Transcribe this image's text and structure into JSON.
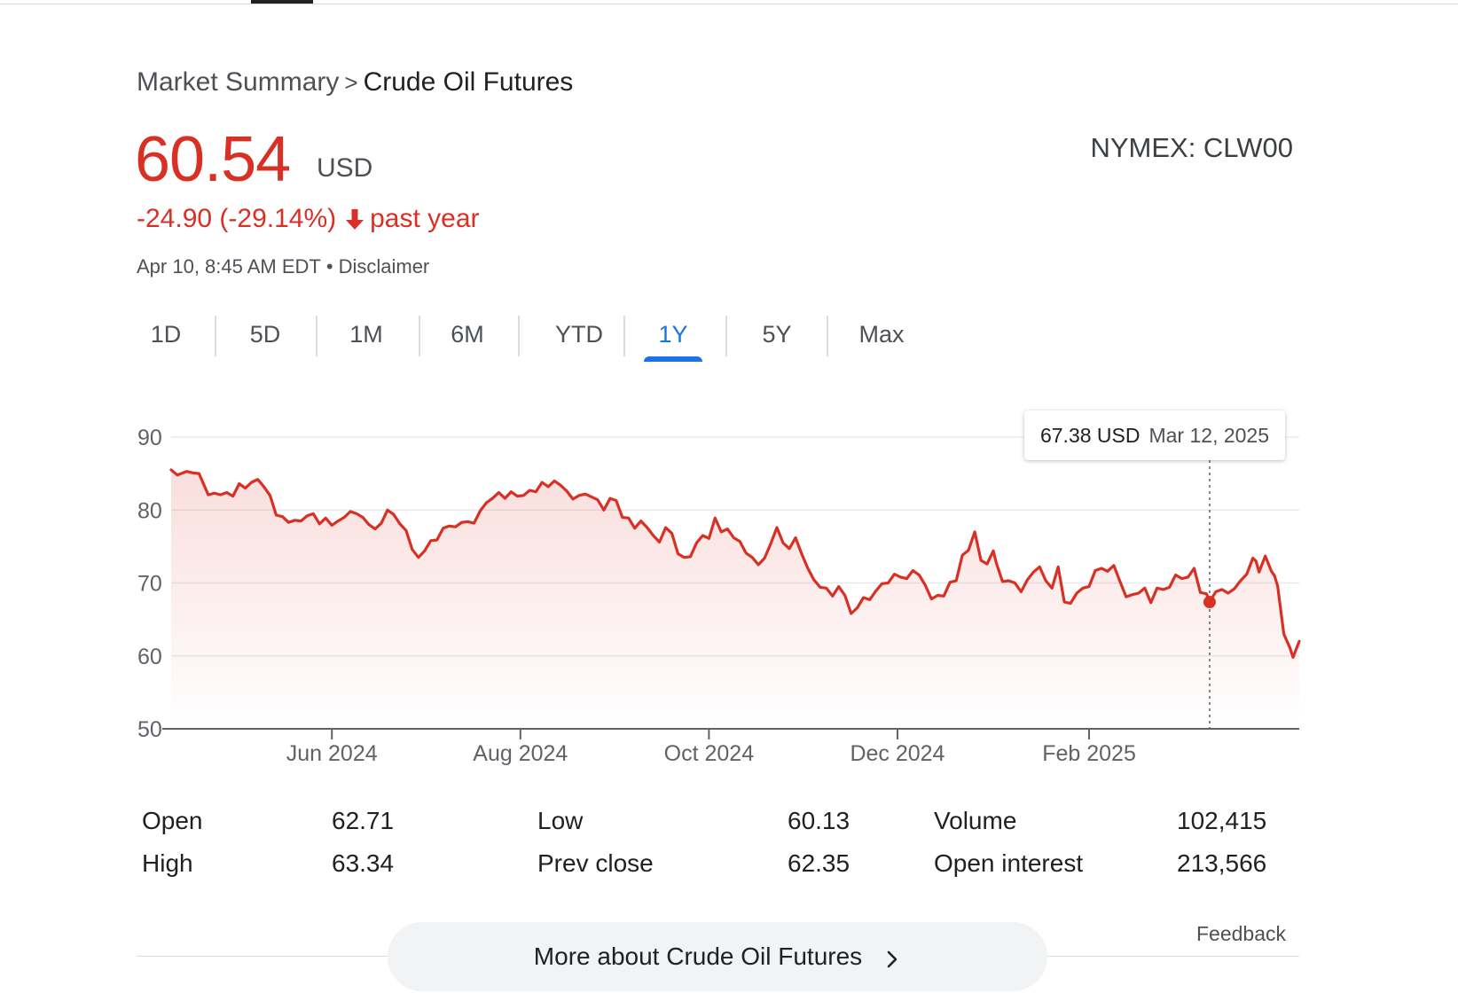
{
  "breadcrumb": {
    "parent": "Market Summary",
    "separator": ">",
    "current": "Crude Oil Futures"
  },
  "quote": {
    "price": "60.54",
    "currency": "USD",
    "change": "-24.90 (-29.14%)",
    "period": "past year",
    "timestamp": "Apr 10, 8:45 AM EDT",
    "separator_dot": "•",
    "disclaimer": "Disclaimer",
    "exchange": "NYMEX: CLW00"
  },
  "tabs": [
    {
      "label": "1D"
    },
    {
      "label": "5D"
    },
    {
      "label": "1M"
    },
    {
      "label": "6M"
    },
    {
      "label": "YTD"
    },
    {
      "label": "1Y"
    },
    {
      "label": "5Y"
    },
    {
      "label": "Max"
    }
  ],
  "active_tab": "1Y",
  "tooltip": {
    "value": "67.38 USD",
    "date": "Mar 12, 2025"
  },
  "colors": {
    "up_down": "#d93025",
    "accent": "#1a73e8",
    "grid": "#e8eaed"
  },
  "chart_data": {
    "type": "area",
    "title": "",
    "xlabel": "",
    "ylabel": "",
    "ylim": [
      50,
      90
    ],
    "yticks": [
      90,
      80,
      70,
      60,
      50
    ],
    "xticks": [
      {
        "x": "2024-06-01",
        "label": "Jun 2024"
      },
      {
        "x": "2024-08-01",
        "label": "Aug 2024"
      },
      {
        "x": "2024-10-01",
        "label": "Oct 2024"
      },
      {
        "x": "2024-12-01",
        "label": "Dec 2024"
      },
      {
        "x": "2025-02-01",
        "label": "Feb 2025"
      }
    ],
    "xlim": [
      "2024-04-10",
      "2025-04-10"
    ],
    "grid": true,
    "highlight": {
      "x": "2025-03-12",
      "y": 67.38
    },
    "series": [
      {
        "points": [
          [
            "2024-04-10",
            85.5
          ],
          [
            "2024-04-12",
            84.8
          ],
          [
            "2024-04-15",
            85.3
          ],
          [
            "2024-04-17",
            85.1
          ],
          [
            "2024-04-19",
            85.0
          ],
          [
            "2024-04-22",
            82.1
          ],
          [
            "2024-04-24",
            82.3
          ],
          [
            "2024-04-26",
            82.1
          ],
          [
            "2024-04-28",
            82.4
          ],
          [
            "2024-04-30",
            81.9
          ],
          [
            "2024-05-02",
            83.6
          ],
          [
            "2024-05-04",
            83.0
          ],
          [
            "2024-05-06",
            83.8
          ],
          [
            "2024-05-08",
            84.2
          ],
          [
            "2024-05-10",
            83.2
          ],
          [
            "2024-05-12",
            82.0
          ],
          [
            "2024-05-14",
            79.3
          ],
          [
            "2024-05-16",
            79.1
          ],
          [
            "2024-05-18",
            78.3
          ],
          [
            "2024-05-20",
            78.6
          ],
          [
            "2024-05-22",
            78.5
          ],
          [
            "2024-05-24",
            79.2
          ],
          [
            "2024-05-26",
            79.5
          ],
          [
            "2024-05-28",
            78.1
          ],
          [
            "2024-05-30",
            78.9
          ],
          [
            "2024-06-01",
            77.9
          ],
          [
            "2024-06-03",
            78.5
          ],
          [
            "2024-06-05",
            79.0
          ],
          [
            "2024-06-07",
            79.8
          ],
          [
            "2024-06-09",
            79.5
          ],
          [
            "2024-06-11",
            79.0
          ],
          [
            "2024-06-13",
            78.0
          ],
          [
            "2024-06-15",
            77.4
          ],
          [
            "2024-06-17",
            78.2
          ],
          [
            "2024-06-19",
            80.0
          ],
          [
            "2024-06-21",
            79.4
          ],
          [
            "2024-06-23",
            78.1
          ],
          [
            "2024-06-25",
            77.2
          ],
          [
            "2024-06-27",
            74.6
          ],
          [
            "2024-06-29",
            73.5
          ],
          [
            "2024-07-01",
            74.4
          ],
          [
            "2024-07-03",
            75.8
          ],
          [
            "2024-07-05",
            75.9
          ],
          [
            "2024-07-07",
            77.5
          ],
          [
            "2024-07-09",
            77.8
          ],
          [
            "2024-07-11",
            77.7
          ],
          [
            "2024-07-13",
            78.3
          ],
          [
            "2024-07-15",
            78.4
          ],
          [
            "2024-07-17",
            78.2
          ],
          [
            "2024-07-19",
            79.9
          ],
          [
            "2024-07-21",
            81.0
          ],
          [
            "2024-07-23",
            81.6
          ],
          [
            "2024-07-25",
            82.4
          ],
          [
            "2024-07-27",
            81.6
          ],
          [
            "2024-07-29",
            82.5
          ],
          [
            "2024-07-31",
            81.9
          ],
          [
            "2024-08-02",
            82.0
          ],
          [
            "2024-08-04",
            82.7
          ],
          [
            "2024-08-06",
            82.5
          ],
          [
            "2024-08-08",
            83.8
          ],
          [
            "2024-08-10",
            83.2
          ],
          [
            "2024-08-12",
            84.0
          ],
          [
            "2024-08-14",
            83.4
          ],
          [
            "2024-08-16",
            82.6
          ],
          [
            "2024-08-18",
            81.5
          ],
          [
            "2024-08-20",
            82.0
          ],
          [
            "2024-08-22",
            82.2
          ],
          [
            "2024-08-24",
            81.8
          ],
          [
            "2024-08-26",
            81.4
          ],
          [
            "2024-08-28",
            80.0
          ],
          [
            "2024-08-30",
            81.6
          ],
          [
            "2024-09-01",
            81.3
          ],
          [
            "2024-09-03",
            79.0
          ],
          [
            "2024-09-05",
            78.9
          ],
          [
            "2024-09-07",
            77.5
          ],
          [
            "2024-09-09",
            78.5
          ],
          [
            "2024-09-11",
            77.6
          ],
          [
            "2024-09-13",
            76.5
          ],
          [
            "2024-09-15",
            75.6
          ],
          [
            "2024-09-17",
            77.6
          ],
          [
            "2024-09-19",
            76.8
          ],
          [
            "2024-09-21",
            74.0
          ],
          [
            "2024-09-23",
            73.5
          ],
          [
            "2024-09-25",
            73.6
          ],
          [
            "2024-09-27",
            75.5
          ],
          [
            "2024-09-29",
            76.5
          ],
          [
            "2024-10-01",
            76.1
          ],
          [
            "2024-10-03",
            78.9
          ],
          [
            "2024-10-05",
            77.0
          ],
          [
            "2024-10-07",
            77.4
          ],
          [
            "2024-10-09",
            76.2
          ],
          [
            "2024-10-11",
            75.7
          ],
          [
            "2024-10-13",
            74.1
          ],
          [
            "2024-10-15",
            73.5
          ],
          [
            "2024-10-17",
            72.5
          ],
          [
            "2024-10-19",
            73.4
          ],
          [
            "2024-10-21",
            75.4
          ],
          [
            "2024-10-23",
            77.6
          ],
          [
            "2024-10-25",
            75.5
          ],
          [
            "2024-10-27",
            74.7
          ],
          [
            "2024-10-29",
            76.2
          ],
          [
            "2024-10-31",
            74.0
          ],
          [
            "2024-11-02",
            72.0
          ],
          [
            "2024-11-04",
            70.4
          ],
          [
            "2024-11-06",
            69.4
          ],
          [
            "2024-11-08",
            69.3
          ],
          [
            "2024-11-10",
            68.2
          ],
          [
            "2024-11-12",
            69.5
          ],
          [
            "2024-11-14",
            68.3
          ],
          [
            "2024-11-16",
            65.8
          ],
          [
            "2024-11-18",
            66.6
          ],
          [
            "2024-11-20",
            68.0
          ],
          [
            "2024-11-22",
            67.7
          ],
          [
            "2024-11-24",
            68.9
          ],
          [
            "2024-11-26",
            69.9
          ],
          [
            "2024-11-28",
            70.0
          ],
          [
            "2024-11-30",
            71.2
          ],
          [
            "2024-12-02",
            70.8
          ],
          [
            "2024-12-04",
            70.6
          ],
          [
            "2024-12-06",
            71.7
          ],
          [
            "2024-12-08",
            71.1
          ],
          [
            "2024-12-10",
            69.7
          ],
          [
            "2024-12-12",
            67.8
          ],
          [
            "2024-12-14",
            68.3
          ],
          [
            "2024-12-16",
            68.2
          ],
          [
            "2024-12-18",
            70.1
          ],
          [
            "2024-12-20",
            70.3
          ],
          [
            "2024-12-22",
            73.8
          ],
          [
            "2024-12-24",
            74.5
          ],
          [
            "2024-12-26",
            77.0
          ],
          [
            "2024-12-28",
            73.1
          ],
          [
            "2024-12-30",
            72.6
          ],
          [
            "2025-01-01",
            74.4
          ],
          [
            "2025-01-02",
            72.7
          ],
          [
            "2025-01-04",
            70.2
          ],
          [
            "2025-01-06",
            70.3
          ],
          [
            "2025-01-08",
            70.0
          ],
          [
            "2025-01-10",
            68.8
          ],
          [
            "2025-01-12",
            70.4
          ],
          [
            "2025-01-14",
            71.5
          ],
          [
            "2025-01-16",
            72.2
          ],
          [
            "2025-01-18",
            70.3
          ],
          [
            "2025-01-20",
            69.3
          ],
          [
            "2025-01-22",
            72.2
          ],
          [
            "2025-01-24",
            67.4
          ],
          [
            "2025-01-26",
            67.2
          ],
          [
            "2025-01-28",
            68.6
          ],
          [
            "2025-01-30",
            69.3
          ],
          [
            "2025-02-01",
            69.5
          ],
          [
            "2025-02-03",
            71.7
          ],
          [
            "2025-02-05",
            72.0
          ],
          [
            "2025-02-07",
            71.6
          ],
          [
            "2025-02-09",
            72.4
          ],
          [
            "2025-02-11",
            70.2
          ],
          [
            "2025-02-13",
            68.1
          ],
          [
            "2025-02-15",
            68.4
          ],
          [
            "2025-02-17",
            68.6
          ],
          [
            "2025-02-19",
            69.3
          ],
          [
            "2025-02-21",
            67.3
          ],
          [
            "2025-02-23",
            69.3
          ],
          [
            "2025-02-25",
            69.1
          ],
          [
            "2025-02-27",
            69.4
          ],
          [
            "2025-03-01",
            71.1
          ],
          [
            "2025-03-03",
            70.6
          ],
          [
            "2025-03-05",
            70.8
          ],
          [
            "2025-03-07",
            72.0
          ],
          [
            "2025-03-09",
            68.7
          ],
          [
            "2025-03-10",
            68.6
          ],
          [
            "2025-03-11",
            68.5
          ],
          [
            "2025-03-12",
            67.38
          ],
          [
            "2025-03-14",
            68.8
          ],
          [
            "2025-03-16",
            69.1
          ],
          [
            "2025-03-18",
            68.6
          ],
          [
            "2025-03-20",
            69.2
          ],
          [
            "2025-03-22",
            70.3
          ],
          [
            "2025-03-24",
            71.2
          ],
          [
            "2025-03-26",
            73.4
          ],
          [
            "2025-03-27",
            73.0
          ],
          [
            "2025-03-28",
            71.5
          ],
          [
            "2025-03-30",
            73.7
          ],
          [
            "2025-04-01",
            71.6
          ],
          [
            "2025-04-02",
            71.0
          ],
          [
            "2025-04-03",
            69.6
          ],
          [
            "2025-04-04",
            66.3
          ],
          [
            "2025-04-05",
            63.0
          ],
          [
            "2025-04-07",
            61.1
          ],
          [
            "2025-04-08",
            59.8
          ],
          [
            "2025-04-09",
            60.9
          ],
          [
            "2025-04-10",
            62.0
          ]
        ]
      }
    ]
  },
  "stats": [
    {
      "label": "Open",
      "value": "62.71"
    },
    {
      "label": "High",
      "value": "63.34"
    },
    {
      "label": "Low",
      "value": "60.13"
    },
    {
      "label": "Prev close",
      "value": "62.35"
    },
    {
      "label": "Volume",
      "value": "102,415"
    },
    {
      "label": "Open interest",
      "value": "213,566"
    }
  ],
  "feedback": "Feedback",
  "more_button": "More about Crude Oil Futures"
}
